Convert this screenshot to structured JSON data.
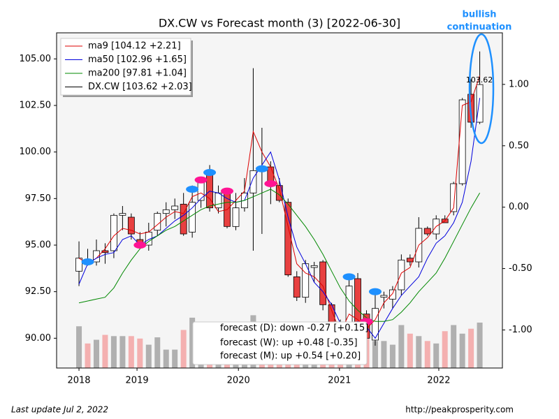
{
  "chart_data": {
    "type": "candlestick",
    "title": "DX.CW vs Forecast month (3) [2022-06-30]",
    "annotation": [
      "bullish",
      "continuation"
    ],
    "annotation_color": "#1e90ff",
    "last_label": "103.62",
    "footer_left": "Last update Jul  2, 2022",
    "footer_right": "http://peakprosperity.com",
    "forecast": [
      "forecast (D): down -0.27 [+0.15]",
      "forecast (W):   up +0.48 [-0.35]",
      "forecast (M):   up +0.54 [+0.20]"
    ],
    "categories": [
      null,
      null,
      null,
      null,
      null,
      null,
      null,
      null,
      null,
      null,
      null,
      null,
      null,
      null,
      null,
      null,
      null,
      null,
      null,
      null,
      null,
      null,
      null,
      null,
      null,
      null,
      null,
      null,
      null,
      null,
      null,
      null,
      null,
      null,
      null,
      null,
      null,
      null,
      null,
      null,
      null,
      null,
      null,
      null,
      null,
      null,
      null
    ],
    "open": [
      93.6,
      94.2,
      94.1,
      94.7,
      94.7,
      96.6,
      96.5,
      95.3,
      95.0,
      95.8,
      96.7,
      96.9,
      97.2,
      95.7,
      97.4,
      98.9,
      97.0,
      97.8,
      96.0,
      97.0,
      97.8,
      99.2,
      99.2,
      98.2,
      97.3,
      93.3,
      92.2,
      93.8,
      94.1,
      91.8,
      90.0,
      90.0,
      93.2,
      91.3,
      89.9,
      92.2,
      92.1,
      92.6,
      94.3,
      94.1,
      95.9,
      95.6,
      96.4,
      96.8,
      98.3,
      103.1,
      101.6
    ],
    "high": [
      95.2,
      94.8,
      95.3,
      95.1,
      96.7,
      97.1,
      96.7,
      95.7,
      96.2,
      96.8,
      97.3,
      97.5,
      97.8,
      98.2,
      98.6,
      99.3,
      98.2,
      98.0,
      97.8,
      98.6,
      104.5,
      101.3,
      99.5,
      98.6,
      97.5,
      93.6,
      94.2,
      94.1,
      94.2,
      91.9,
      91.0,
      93.4,
      93.5,
      91.5,
      92.4,
      92.5,
      92.8,
      94.5,
      94.5,
      96.5,
      96.0,
      96.6,
      96.6,
      98.4,
      102.9,
      103.9,
      105.4
    ],
    "low": [
      92.8,
      93.9,
      93.9,
      94.0,
      94.3,
      95.8,
      95.3,
      94.8,
      94.7,
      95.5,
      96.0,
      96.4,
      95.5,
      95.4,
      97.0,
      96.8,
      96.7,
      95.9,
      95.8,
      96.8,
      94.7,
      95.6,
      97.2,
      97.3,
      93.3,
      92.0,
      91.9,
      93.0,
      91.5,
      89.9,
      89.3,
      89.9,
      90.1,
      89.8,
      89.6,
      91.6,
      91.6,
      92.3,
      93.9,
      93.8,
      95.5,
      95.3,
      96.2,
      96.6,
      98.2,
      101.3,
      101.5
    ],
    "close": [
      94.3,
      94.0,
      94.7,
      94.6,
      96.6,
      96.7,
      95.6,
      95.0,
      95.7,
      96.7,
      96.9,
      97.1,
      95.6,
      97.3,
      98.4,
      97.0,
      97.8,
      96.0,
      97.0,
      97.8,
      99.0,
      99.0,
      98.2,
      97.4,
      93.4,
      92.2,
      94.0,
      93.9,
      91.8,
      90.1,
      89.9,
      92.8,
      90.5,
      90.0,
      91.6,
      92.3,
      92.6,
      94.2,
      94.1,
      95.9,
      95.6,
      96.4,
      96.2,
      98.3,
      102.8,
      101.6,
      103.62
    ],
    "up_color": "#ffffff",
    "down_color": "#e84040",
    "series": [
      {
        "name": "ma9 [104.12 +2.21]",
        "color": "#dd0000",
        "values": [
          94.3,
          94.0,
          94.3,
          94.8,
          95.5,
          95.9,
          95.8,
          95.6,
          95.7,
          96.1,
          96.5,
          96.8,
          96.7,
          97.6,
          97.8,
          97.5,
          96.8,
          96.9,
          97.4,
          97.9,
          101.1,
          100.0,
          99.2,
          98.0,
          96.0,
          94.0,
          93.5,
          93.3,
          92.8,
          91.5,
          90.3,
          91.3,
          91.0,
          90.5,
          91.0,
          91.9,
          92.4,
          93.5,
          93.8,
          95.0,
          95.4,
          96.0,
          96.3,
          97.0,
          102.5,
          102.7,
          104.1
        ]
      },
      {
        "name": "ma50 [102.96 +1.65]",
        "color": "#0000dd",
        "values": [
          92.9,
          94.0,
          94.3,
          94.5,
          94.6,
          95.3,
          95.5,
          95.0,
          95.3,
          95.5,
          95.9,
          96.3,
          96.6,
          97.0,
          97.5,
          97.9,
          97.8,
          97.5,
          97.3,
          97.4,
          98.6,
          99.3,
          100.0,
          98.5,
          96.5,
          94.9,
          94.0,
          93.0,
          92.5,
          91.8,
          90.8,
          90.6,
          90.9,
          90.6,
          90.0,
          90.8,
          91.6,
          92.3,
          92.8,
          93.3,
          94.3,
          95.1,
          95.5,
          96.2,
          97.3,
          99.5,
          102.9
        ]
      },
      {
        "name": "ma200 [97.81 +1.04]",
        "color": "#008800",
        "values": [
          91.9,
          92.0,
          92.1,
          92.2,
          92.7,
          93.5,
          94.2,
          94.8,
          95.2,
          95.5,
          95.8,
          96.0,
          96.3,
          96.6,
          96.9,
          97.1,
          97.2,
          97.3,
          97.3,
          97.4,
          97.6,
          97.8,
          98.0,
          97.7,
          97.2,
          96.6,
          96.0,
          95.3,
          94.5,
          93.6,
          92.7,
          92.0,
          91.5,
          91.1,
          90.9,
          90.9,
          91.0,
          91.4,
          91.9,
          92.5,
          93.0,
          93.5,
          94.3,
          95.2,
          96.1,
          97.0,
          97.8
        ]
      }
    ],
    "candle_legend": {
      "name": "DX.CW [103.62 +2.03]",
      "color": "#000000"
    },
    "volume": {
      "axis": "y2",
      "up_color": "#b0b0b0",
      "down_color": "#f4b0b0",
      "values": [
        -0.97,
        -1.11,
        -1.08,
        -1.04,
        -1.05,
        -1.05,
        -1.05,
        -1.07,
        -1.12,
        -1.06,
        -1.16,
        -1.16,
        -1.0,
        -0.9,
        -1.18,
        -1.22,
        -1.1,
        -1.12,
        -1.22,
        -1.08,
        -0.88,
        -1.08,
        -0.99,
        -0.97,
        -1.05,
        -1.03,
        -1.16,
        -1.14,
        -1.12,
        -1.2,
        -1.25,
        -1.06,
        -1.09,
        -1.05,
        -1.09,
        -1.09,
        -1.12,
        -0.96,
        -1.03,
        -1.05,
        -1.09,
        -1.11,
        -1.01,
        -0.96,
        -1.03,
        -0.99,
        -0.94
      ]
    },
    "signals": [
      {
        "color": "#1e90ff",
        "x": [
          1,
          13,
          15,
          21,
          31,
          34
        ],
        "y": [
          94.1,
          98.0,
          98.9,
          99.1,
          93.3,
          92.5
        ]
      },
      {
        "color": "#ff1493",
        "x": [
          7,
          14,
          17,
          22,
          33
        ],
        "y": [
          95.0,
          98.5,
          97.9,
          98.3,
          90.9
        ]
      }
    ],
    "xlim": [
      -2.57,
      48.6
    ],
    "xticks": [
      {
        "value": 0,
        "label": "2018"
      },
      {
        "value": 6.66,
        "label": "2019"
      },
      {
        "value": 18.3,
        "label": "2020"
      },
      {
        "value": 29.9,
        "label": "2021"
      },
      {
        "value": 41.3,
        "label": "2022"
      }
    ],
    "ylim": [
      88.4,
      106.4
    ],
    "yticks": [
      {
        "value": 90,
        "label": "90.00"
      },
      {
        "value": 92.5,
        "label": "92.50"
      },
      {
        "value": 95,
        "label": "95.00"
      },
      {
        "value": 97.5,
        "label": "97.50"
      },
      {
        "value": 100,
        "label": "100.00"
      },
      {
        "value": 102.5,
        "label": "102.50"
      },
      {
        "value": 105,
        "label": "105.00"
      }
    ],
    "y2lim": [
      -1.31,
      1.42
    ],
    "y2ticks": [
      {
        "value": -1,
        "label": "-1.00"
      },
      {
        "value": -0.5,
        "label": "-0.50"
      },
      {
        "value": 0,
        "label": "0.00"
      },
      {
        "value": 0.5,
        "label": "0.50"
      },
      {
        "value": 1,
        "label": "1.00"
      }
    ]
  }
}
